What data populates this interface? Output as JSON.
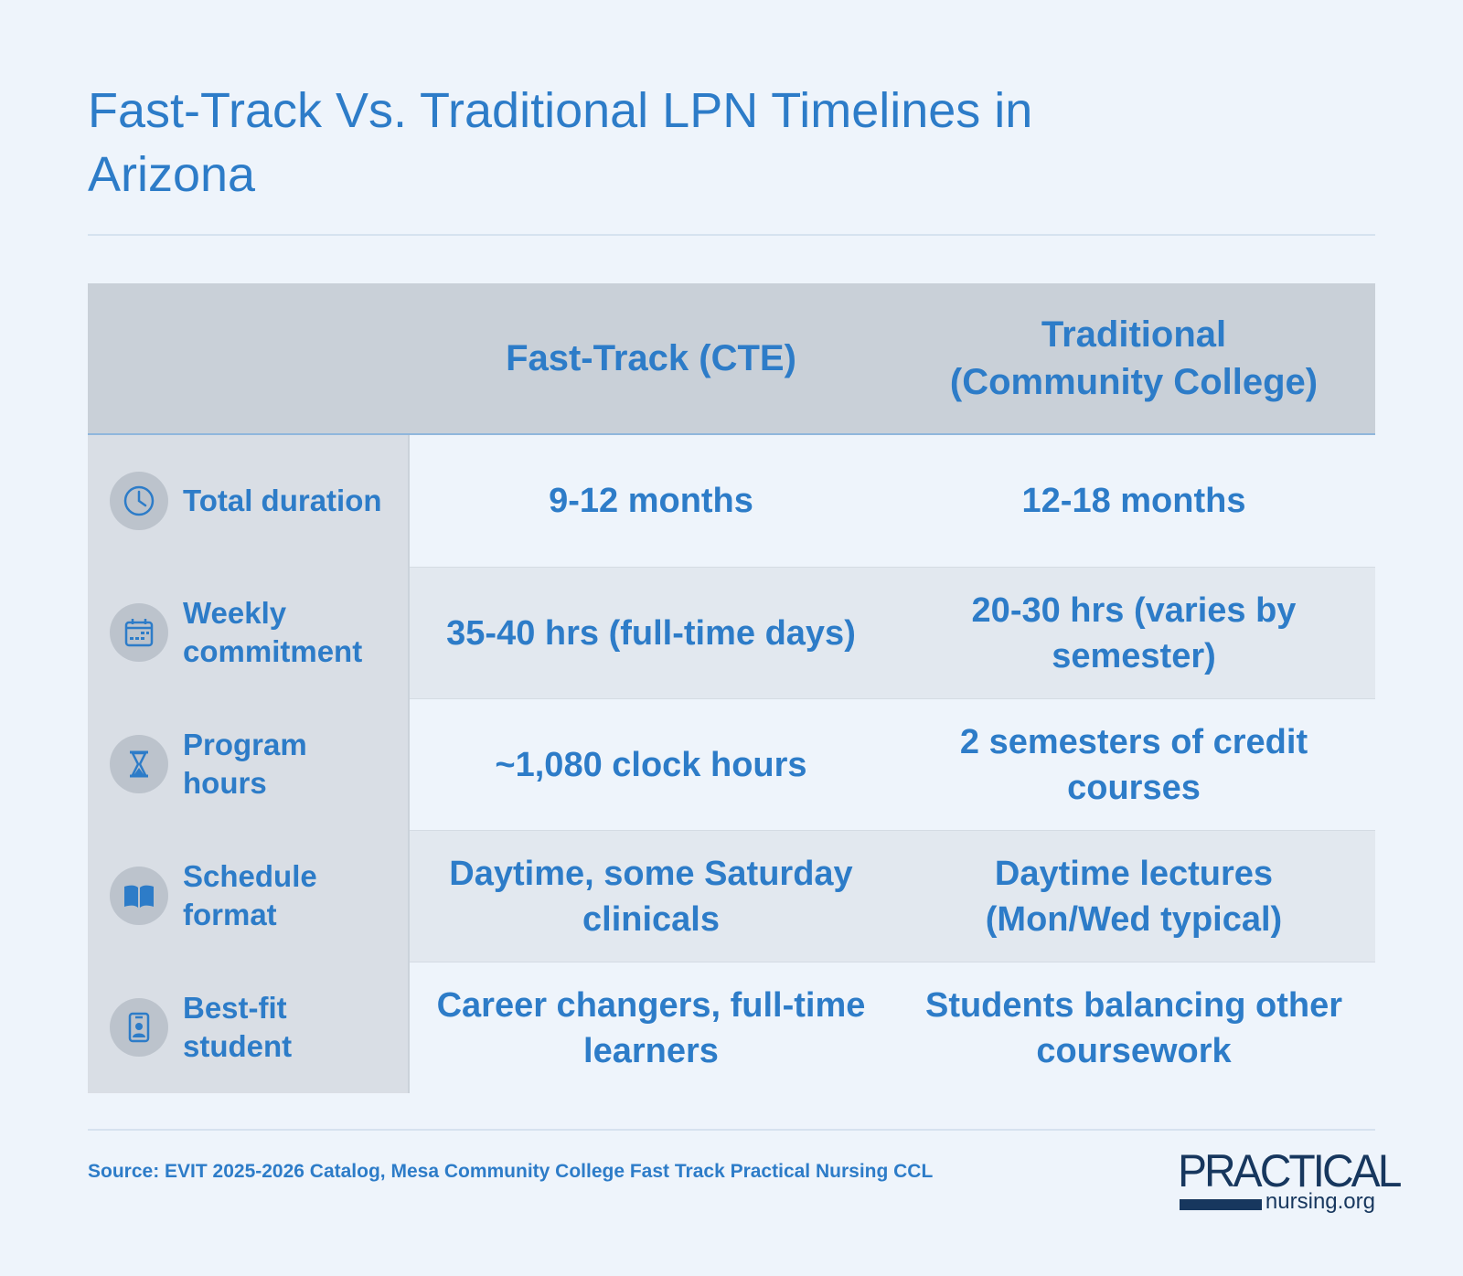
{
  "title": "Fast-Track Vs. Traditional LPN Timelines in Arizona",
  "table": {
    "headers": [
      "",
      "Fast-Track (CTE)",
      "Traditional (Community College)"
    ],
    "rows": [
      {
        "label": "Total duration",
        "icon": "clock-icon",
        "fast_track": "9-12 months",
        "traditional": "12-18 months"
      },
      {
        "label": "Weekly commitment",
        "icon": "calendar-icon",
        "fast_track": "35-40 hrs (full-time days)",
        "traditional": "20-30 hrs (varies by semester)"
      },
      {
        "label": "Program hours",
        "icon": "hourglass-icon",
        "fast_track": "~1,080 clock hours",
        "traditional": "2 semesters of credit courses"
      },
      {
        "label": "Schedule format",
        "icon": "book-icon",
        "fast_track": "Daytime, some Saturday clinicals",
        "traditional": "Daytime lectures (Mon/Wed typical)"
      },
      {
        "label": "Best-fit student",
        "icon": "id-badge-icon",
        "fast_track": "Career changers, full-time learners",
        "traditional": "Students balancing other coursework"
      }
    ]
  },
  "source": "Source: EVIT 2025-2026 Catalog, Mesa Community College Fast Track Practical Nursing CCL",
  "logo": {
    "main": "PRACTICAL",
    "sub": "nursing.org"
  },
  "colors": {
    "accent": "#2d7cc8",
    "background": "#eef4fb",
    "header_bg": "#c9d0d8",
    "logo": "#17375e"
  }
}
